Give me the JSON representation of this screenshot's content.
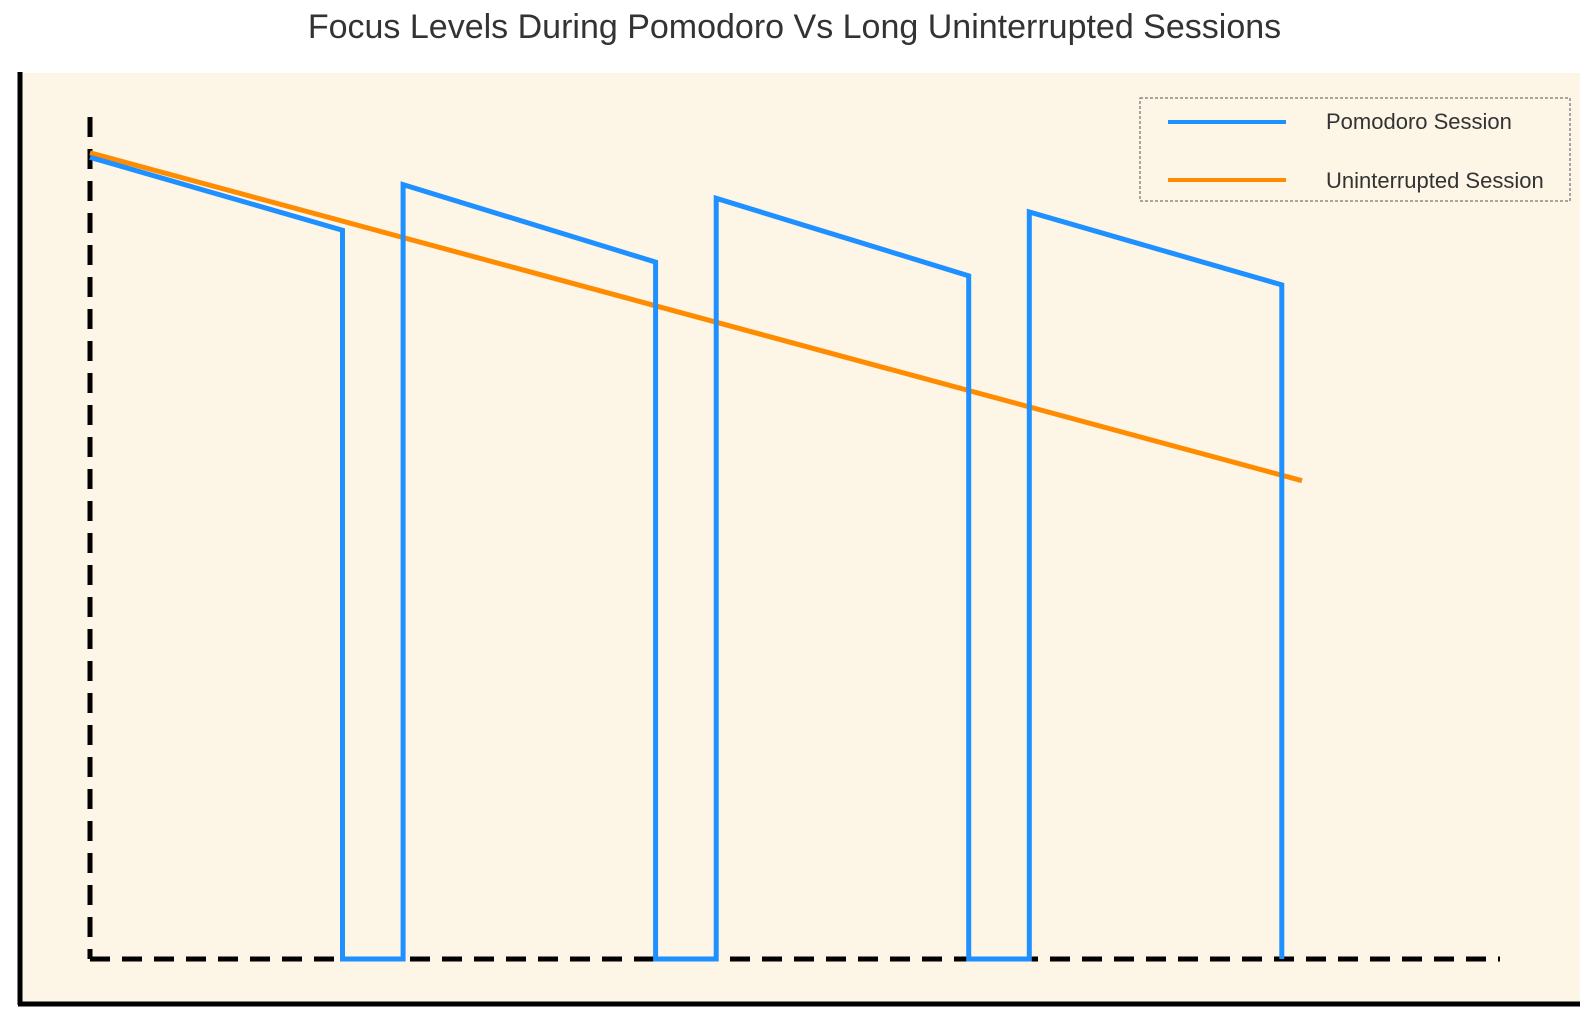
{
  "chart_data": {
    "type": "line",
    "title": "Focus Levels During Pomodoro Vs Long Uninterrupted Sessions",
    "xlabel": "",
    "ylabel": "",
    "xlim": [
      0,
      120
    ],
    "ylim": [
      0,
      100
    ],
    "grid": false,
    "legend_position": "top-right",
    "colors": {
      "plot_background": "#fdf5e6",
      "axis": "#000000"
    },
    "series": [
      {
        "name": "Pomodoro Session",
        "color": "#1e90ff",
        "x": [
          0,
          25,
          25,
          31,
          31,
          56,
          56,
          62,
          62,
          87,
          87,
          93,
          93,
          118,
          118
        ],
        "y": [
          88,
          80,
          0,
          0,
          85,
          76.5,
          0,
          0,
          83.5,
          75,
          0,
          0,
          82,
          74,
          0
        ]
      },
      {
        "name": "Uninterrupted Session",
        "color": "#ff8c00",
        "x": [
          0,
          120
        ],
        "y": [
          88.5,
          52.5
        ]
      }
    ]
  }
}
